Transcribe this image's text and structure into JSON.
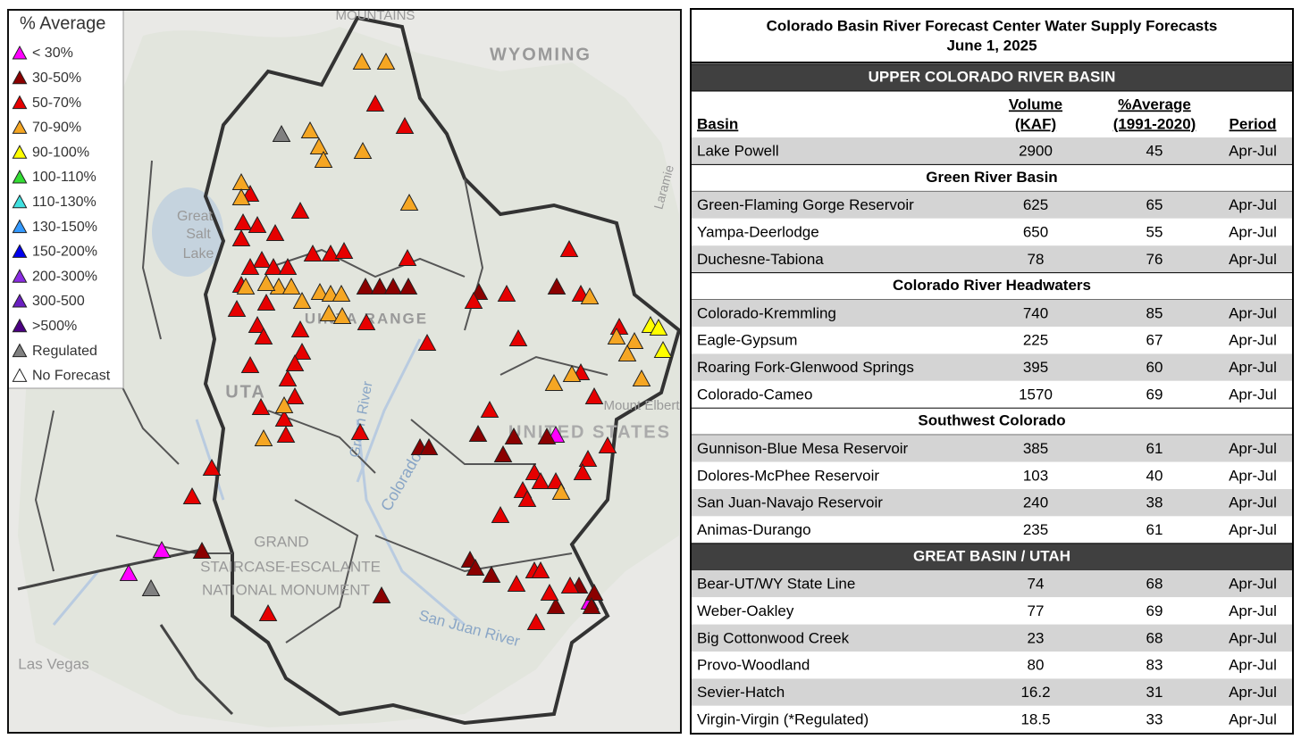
{
  "legend": {
    "title": "% Average",
    "items": [
      {
        "label": "< 30%",
        "color": "#ff00ff"
      },
      {
        "label": "30-50%",
        "color": "#8b0000"
      },
      {
        "label": "50-70%",
        "color": "#e60000"
      },
      {
        "label": "70-90%",
        "color": "#f5a623"
      },
      {
        "label": "90-100%",
        "color": "#ffff00"
      },
      {
        "label": "100-110%",
        "color": "#33dd33"
      },
      {
        "label": "110-130%",
        "color": "#40e0e0"
      },
      {
        "label": "130-150%",
        "color": "#3399ff"
      },
      {
        "label": "150-200%",
        "color": "#0000ee"
      },
      {
        "label": "200-300%",
        "color": "#8a2be2"
      },
      {
        "label": "300-500",
        "color": "#6a1fc0"
      },
      {
        "label": ">500%",
        "color": "#4b0082"
      },
      {
        "label": "Regulated",
        "color": "#808080"
      },
      {
        "label": "No Forecast",
        "color": "#ffffff"
      }
    ]
  },
  "map_labels": [
    "WYOMING",
    "Great",
    "Salt",
    "Lake",
    "UTA",
    "UNITED STATES",
    "Colorado",
    "Green River",
    "San Juan River",
    "Las Vegas",
    "Mount Elbert",
    "GRAND",
    "STAIRCASE-ESCALANTE",
    "NATIONAL MONUMENT",
    "MOUNTAINS",
    "Laramie",
    "UINTA RANGE"
  ],
  "table": {
    "title": [
      "Colorado Basin River Forecast Center Water Supply Forecasts",
      "June 1, 2025"
    ],
    "columns": [
      [
        "Basin"
      ],
      [
        "Volume",
        "(KAF)"
      ],
      [
        "%Average",
        "(1991-2020)"
      ],
      [
        "Period"
      ]
    ],
    "sections": [
      {
        "heading": "UPPER COLORADO RIVER BASIN",
        "major": true,
        "rows": [
          [
            "Lake Powell",
            2900,
            45,
            "Apr-Jul"
          ]
        ]
      },
      {
        "heading": "Green River Basin",
        "major": false,
        "rows": [
          [
            "Green-Flaming Gorge Reservoir",
            625,
            65,
            "Apr-Jul"
          ],
          [
            "Yampa-Deerlodge",
            650,
            55,
            "Apr-Jul"
          ],
          [
            "Duchesne-Tabiona",
            78,
            76,
            "Apr-Jul"
          ]
        ]
      },
      {
        "heading": "Colorado River Headwaters",
        "major": false,
        "rows": [
          [
            "Colorado-Kremmling",
            740,
            85,
            "Apr-Jul"
          ],
          [
            "Eagle-Gypsum",
            225,
            67,
            "Apr-Jul"
          ],
          [
            "Roaring Fork-Glenwood Springs",
            395,
            60,
            "Apr-Jul"
          ],
          [
            "Colorado-Cameo",
            1570,
            69,
            "Apr-Jul"
          ]
        ]
      },
      {
        "heading": "Southwest Colorado",
        "major": false,
        "rows": [
          [
            "Gunnison-Blue Mesa Reservoir",
            385,
            61,
            "Apr-Jul"
          ],
          [
            "Dolores-McPhee Reservoir",
            103,
            40,
            "Apr-Jul"
          ],
          [
            "San Juan-Navajo Reservoir",
            240,
            38,
            "Apr-Jul"
          ],
          [
            "Animas-Durango",
            235,
            61,
            "Apr-Jul"
          ]
        ]
      },
      {
        "heading": "GREAT BASIN / UTAH",
        "major": true,
        "rows": [
          [
            "Bear-UT/WY State Line",
            74,
            68,
            "Apr-Jul"
          ],
          [
            "Weber-Oakley",
            77,
            69,
            "Apr-Jul"
          ],
          [
            "Big Cottonwood Creek",
            23,
            68,
            "Apr-Jul"
          ],
          [
            "Provo-Woodland",
            80,
            83,
            "Apr-Jul"
          ],
          [
            "Sevier-Hatch",
            16.2,
            31,
            "Apr-Jul"
          ],
          [
            "Virgin-Virgin (*Regulated)",
            18.5,
            33,
            "Apr-Jul"
          ]
        ]
      }
    ]
  }
}
